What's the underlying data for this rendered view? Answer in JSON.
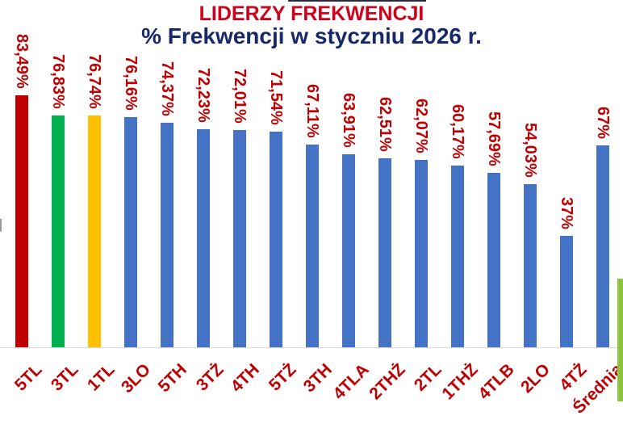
{
  "page": {
    "background": "#FFFFFF"
  },
  "title": {
    "text": "LIDERZY FREKWENCJI",
    "color": "#D0021B"
  },
  "subtitle": {
    "text": "% Frekwencji w styczniu 2026 r.",
    "color": "#17286B"
  },
  "chart_data": {
    "type": "bar",
    "title": "LIDERZY FREKWENCJI",
    "subtitle": "% Frekwencji w styczniu 2026 r.",
    "categories": [
      "5TL",
      "3TL",
      "1TL",
      "3LO",
      "5TH",
      "3TŻ",
      "4TH",
      "5TŻ",
      "3TH",
      "4TLA",
      "2THŻ",
      "2TL",
      "1THŻ",
      "4TLB",
      "2LO",
      "4TŻ",
      "Średnia"
    ],
    "values": [
      83.49,
      76.83,
      76.74,
      76.16,
      74.37,
      72.23,
      72.01,
      71.54,
      67.11,
      63.91,
      62.51,
      62.07,
      60.17,
      57.69,
      54.03,
      37,
      67
    ],
    "value_labels": [
      "83,49%",
      "76,83%",
      "76,74%",
      "76,16%",
      "74,37%",
      "72,23%",
      "72,01%",
      "71,54%",
      "67,11%",
      "63,91%",
      "62,51%",
      "62,07%",
      "60,17%",
      "57,69%",
      "54,03%",
      "37%",
      "67%"
    ],
    "bar_colors": [
      "#C00000",
      "#00B050",
      "#FFC000",
      "#4472C4",
      "#4472C4",
      "#4472C4",
      "#4472C4",
      "#4472C4",
      "#4472C4",
      "#4472C4",
      "#4472C4",
      "#4472C4",
      "#4472C4",
      "#4472C4",
      "#4472C4",
      "#4472C4",
      "#4472C4"
    ],
    "value_label_color": "#C00000",
    "category_label_color": "#C00000",
    "axis_line_color": "#D9D9D9",
    "ylim": [
      0,
      100
    ],
    "grid": false,
    "legend": false,
    "value_label_rotation_deg": 90,
    "category_label_rotation_deg": -45
  },
  "decorations": {
    "right_green_stripe_color": "#8CC43F"
  }
}
